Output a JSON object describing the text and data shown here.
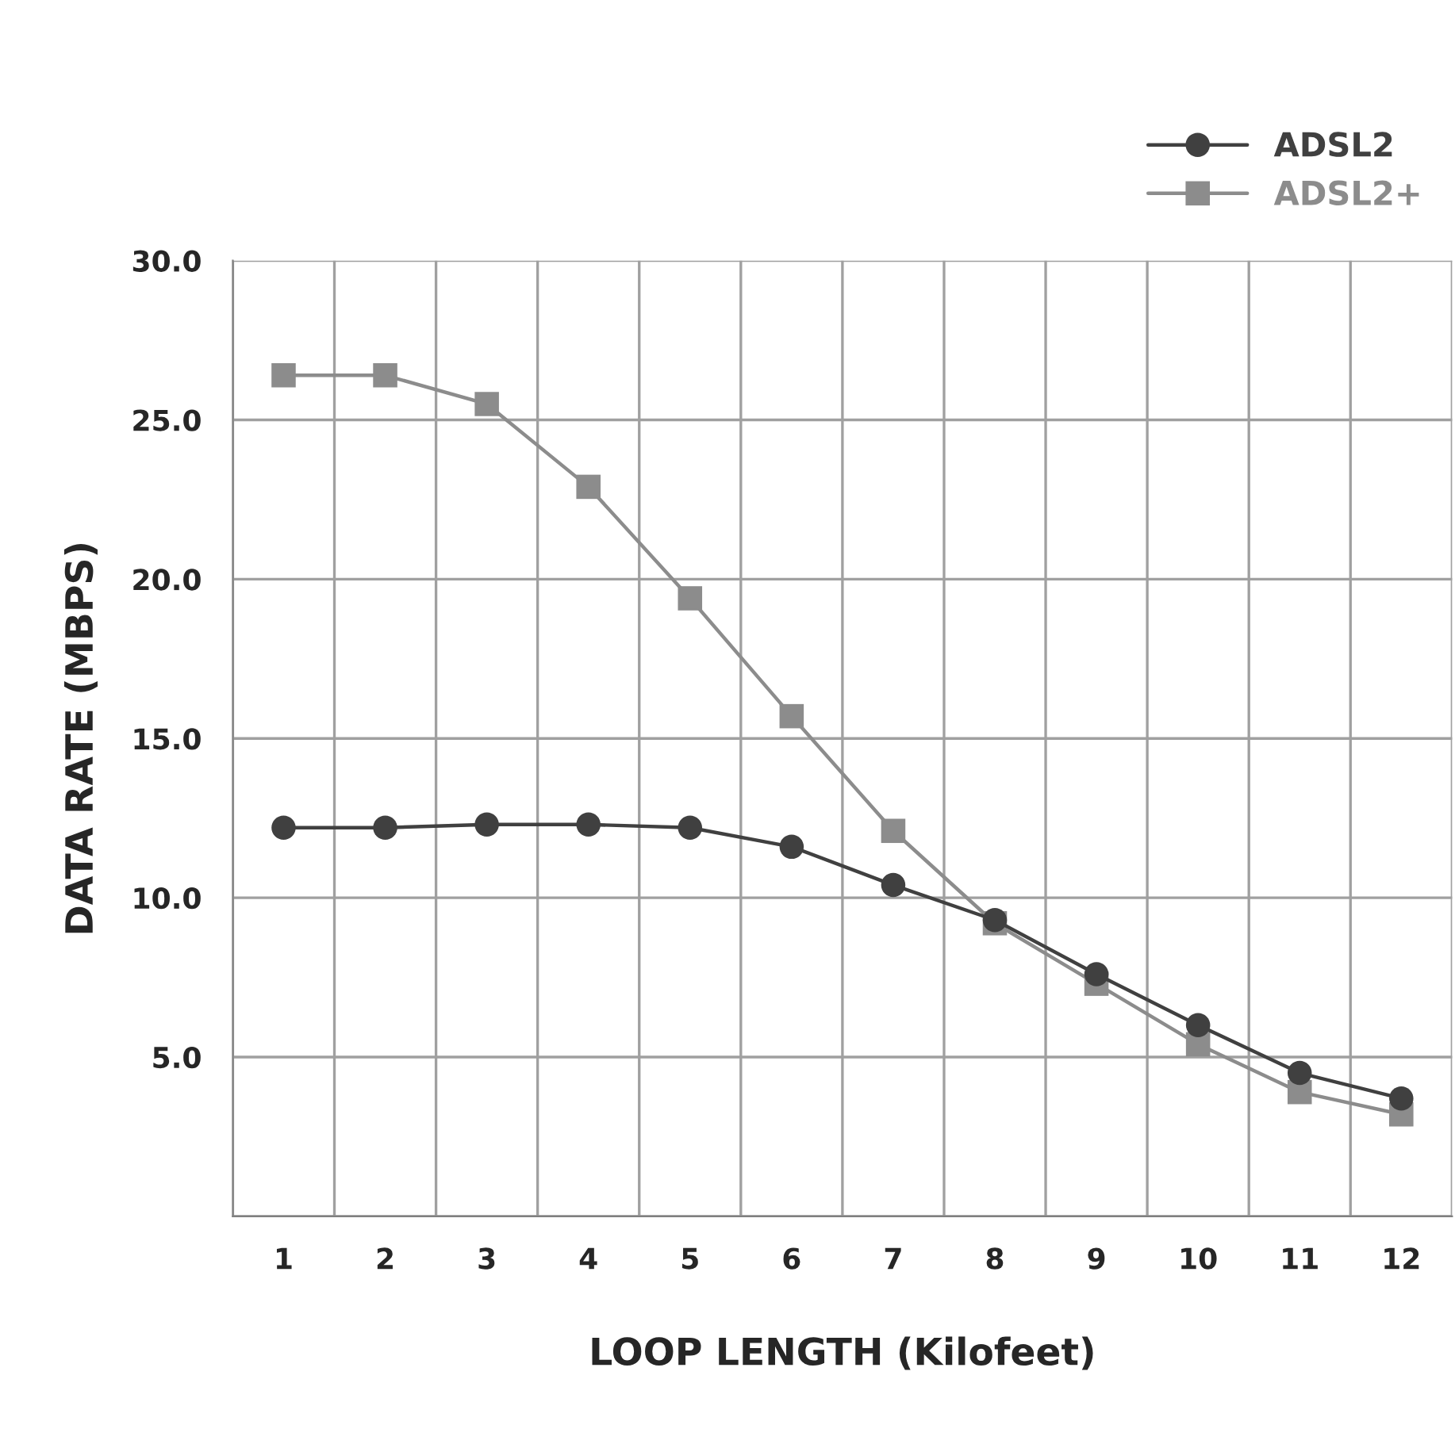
{
  "chart_data": {
    "type": "line",
    "xlabel": "LOOP LENGTH (Kilofeet)",
    "ylabel": "DATA RATE (MBPS)",
    "categories": [
      "1",
      "2",
      "3",
      "4",
      "5",
      "6",
      "7",
      "8",
      "9",
      "10",
      "11",
      "12"
    ],
    "series": [
      {
        "name": "ADSL2",
        "color": "#404040",
        "marker": "circle",
        "values": [
          12.2,
          12.2,
          12.3,
          12.3,
          12.2,
          11.6,
          10.4,
          9.3,
          7.6,
          6.0,
          4.5,
          3.7
        ]
      },
      {
        "name": "ADSL2+",
        "color": "#8c8c8c",
        "marker": "square",
        "values": [
          26.4,
          26.4,
          25.5,
          22.9,
          19.4,
          15.7,
          12.1,
          9.2,
          7.3,
          5.4,
          3.9,
          3.2
        ]
      }
    ],
    "ylim": [
      0,
      30
    ],
    "yticks": [
      {
        "value": 0,
        "label": null
      },
      {
        "value": 5,
        "label": "5.0"
      },
      {
        "value": 10,
        "label": "10.0"
      },
      {
        "value": 15,
        "label": "15.0"
      },
      {
        "value": 20,
        "label": "20.0"
      },
      {
        "value": 25,
        "label": "25.0"
      },
      {
        "value": 30,
        "label": "30.0"
      }
    ],
    "grid": true,
    "legend": "top right",
    "line_style": "solid"
  }
}
